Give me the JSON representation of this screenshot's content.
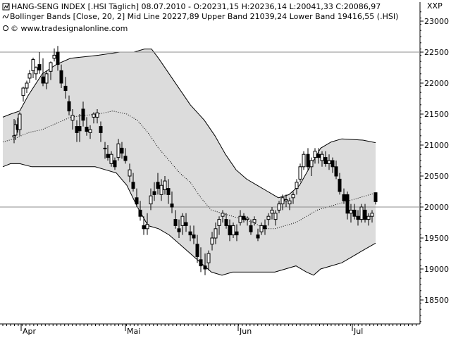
{
  "header": {
    "line1": "HANG-SENG INDEX [.HSI  Täglich] 08.07.2010 - O:20231,15 H:20236,14 L:20041,33 C:20086,97",
    "line2": "Bollinger Bands [Close, 20, 2] Mid Line 20227,89 Upper Band 21039,24 Lower Band 19416,55 (.HSI)",
    "line3": "© www.tradesignalonline.com"
  },
  "icons": {
    "bollinger": "wave-icon",
    "copyright": "copyright-icon",
    "corner": "XXP"
  },
  "colors": {
    "band_fill": "#dcdcdc",
    "band_line": "#000000",
    "candle_up": "#ffffff",
    "candle_down": "#000000",
    "grid": "#c8c8c8",
    "ref_line": "#8c8c8c"
  },
  "chart_data": {
    "type": "candlestick",
    "title": "HANG-SENG INDEX",
    "y_axis": {
      "range": [
        18000,
        23200
      ],
      "ticks": [
        18500,
        19000,
        19500,
        20000,
        20500,
        21000,
        21500,
        22000,
        22500,
        23000
      ],
      "tick_labels": [
        "18500",
        "19000",
        "19500",
        "20000",
        "20500",
        "21000",
        "21500",
        "22000",
        "22500",
        "23000"
      ],
      "position": "right"
    },
    "x_axis": {
      "labels": [
        "Apr",
        "Mai",
        "Jun",
        "Jul"
      ],
      "label_index": [
        2,
        37,
        72,
        103
      ],
      "n_bars": 108
    },
    "reference_lines": [
      22500,
      20000
    ],
    "candles": [
      [
        20,
        21130,
        21420,
        21030,
        21150
      ],
      [
        22,
        21160,
        21400,
        21080,
        21330
      ],
      [
        25,
        21330,
        21440,
        21200,
        21250
      ],
      [
        28,
        21250,
        21530,
        21150,
        21500
      ],
      [
        33,
        21800,
        21940,
        21700,
        21920
      ],
      [
        38,
        21920,
        22040,
        21840,
        22000
      ],
      [
        42,
        22080,
        22210,
        22000,
        22150
      ],
      [
        47,
        22200,
        22410,
        22080,
        22380
      ],
      [
        51,
        22150,
        22270,
        22050,
        22250
      ],
      [
        56,
        22300,
        22500,
        22150,
        22210
      ],
      [
        61,
        22100,
        22400,
        21950,
        22000
      ],
      [
        66,
        22000,
        22200,
        21900,
        22150
      ],
      [
        72,
        22190,
        22350,
        22050,
        22330
      ],
      [
        77,
        22400,
        22560,
        22350,
        22450
      ],
      [
        82,
        22500,
        22600,
        22200,
        22300
      ],
      [
        87,
        22200,
        22300,
        21920,
        22000
      ],
      [
        93,
        21950,
        22100,
        21750,
        21880
      ],
      [
        98,
        21700,
        21800,
        21480,
        21550
      ],
      [
        103,
        21400,
        21580,
        21250,
        21480
      ],
      [
        109,
        21300,
        21400,
        21050,
        21200
      ],
      [
        113,
        21300,
        21500,
        21050,
        21230
      ],
      [
        118,
        21580,
        21700,
        21300,
        21400
      ],
      [
        123,
        21290,
        21450,
        21150,
        21220
      ],
      [
        128,
        21200,
        21320,
        21100,
        21250
      ],
      [
        133,
        21450,
        21530,
        21350,
        21500
      ],
      [
        138,
        21450,
        21580,
        21350,
        21520
      ],
      [
        143,
        21300,
        21380,
        21050,
        21200
      ],
      [
        149,
        20950,
        21050,
        20780,
        20950
      ],
      [
        153,
        20850,
        21000,
        20750,
        20800
      ],
      [
        158,
        20700,
        20900,
        20650,
        20850
      ],
      [
        163,
        20750,
        20800,
        20600,
        20650
      ],
      [
        168,
        20800,
        21100,
        20750,
        21020
      ],
      [
        173,
        20950,
        21050,
        20780,
        20870
      ],
      [
        178,
        20820,
        20950,
        20700,
        20750
      ],
      [
        184,
        20500,
        20700,
        20400,
        20600
      ],
      [
        189,
        20400,
        20550,
        20250,
        20300
      ],
      [
        194,
        20150,
        20300,
        20000,
        20050
      ],
      [
        199,
        19950,
        20100,
        19780,
        19850
      ],
      [
        204,
        19700,
        19850,
        19550,
        19650
      ],
      [
        209,
        19650,
        19900,
        19550,
        19720
      ],
      [
        214,
        20050,
        20300,
        19950,
        20180
      ],
      [
        219,
        20250,
        20400,
        20100,
        20200
      ],
      [
        224,
        20400,
        20550,
        20200,
        20300
      ],
      [
        229,
        20200,
        20450,
        20100,
        20350
      ],
      [
        234,
        20280,
        20500,
        20200,
        20420
      ],
      [
        239,
        20300,
        20450,
        20050,
        20200
      ],
      [
        244,
        20050,
        20250,
        19900,
        20000
      ],
      [
        249,
        19800,
        19950,
        19650,
        19700
      ],
      [
        254,
        19650,
        19800,
        19500,
        19600
      ],
      [
        259,
        19700,
        19900,
        19550,
        19850
      ],
      [
        264,
        19750,
        19900,
        19600,
        19700
      ],
      [
        270,
        19600,
        19700,
        19450,
        19550
      ],
      [
        275,
        19550,
        19700,
        19400,
        19500
      ],
      [
        280,
        19400,
        19550,
        19100,
        19200
      ],
      [
        285,
        19150,
        19350,
        18950,
        19050
      ],
      [
        291,
        19050,
        19250,
        18900,
        19000
      ],
      [
        296,
        19100,
        19300,
        18980,
        19250
      ],
      [
        301,
        19400,
        19600,
        19300,
        19500
      ],
      [
        306,
        19500,
        19750,
        19400,
        19650
      ],
      [
        311,
        19700,
        19850,
        19550,
        19800
      ],
      [
        316,
        19850,
        19950,
        19750,
        19900
      ],
      [
        321,
        19800,
        19900,
        19650,
        19700
      ],
      [
        326,
        19700,
        19800,
        19450,
        19550
      ],
      [
        331,
        19550,
        19750,
        19500,
        19700
      ],
      [
        336,
        19600,
        19720,
        19450,
        19550
      ],
      [
        341,
        19750,
        19950,
        19700,
        19850
      ],
      [
        346,
        19850,
        19900,
        19750,
        19800
      ],
      [
        351,
        19800,
        19850,
        19700,
        19820
      ],
      [
        356,
        19700,
        19800,
        19550,
        19600
      ],
      [
        361,
        19750,
        19850,
        19700,
        19800
      ],
      [
        366,
        19550,
        19650,
        19450,
        19500
      ],
      [
        371,
        19600,
        19750,
        19550,
        19700
      ],
      [
        376,
        19700,
        19800,
        19550,
        19650
      ],
      [
        381,
        19800,
        19900,
        19700,
        19850
      ],
      [
        386,
        19900,
        20000,
        19800,
        19950
      ],
      [
        391,
        19800,
        19950,
        19700,
        19900
      ],
      [
        396,
        19950,
        20100,
        19900,
        20050
      ],
      [
        401,
        20050,
        20200,
        19950,
        20150
      ],
      [
        406,
        20100,
        20200,
        20000,
        20120
      ],
      [
        411,
        20050,
        20150,
        19950,
        20100
      ],
      [
        416,
        20150,
        20250,
        20050,
        20200
      ],
      [
        421,
        20300,
        20450,
        20200,
        20400
      ],
      [
        426,
        20450,
        20700,
        20400,
        20650
      ],
      [
        431,
        20650,
        20900,
        20600,
        20850
      ],
      [
        437,
        20850,
        20950,
        20600,
        20650
      ],
      [
        442,
        20650,
        20800,
        20500,
        20750
      ],
      [
        447,
        20800,
        20950,
        20700,
        20900
      ],
      [
        452,
        20850,
        20950,
        20700,
        20800
      ],
      [
        457,
        20750,
        20900,
        20650,
        20850
      ],
      [
        462,
        20800,
        20900,
        20650,
        20700
      ],
      [
        467,
        20700,
        20850,
        20600,
        20750
      ],
      [
        472,
        20750,
        20800,
        20550,
        20650
      ],
      [
        477,
        20650,
        20750,
        20450,
        20500
      ],
      [
        482,
        20450,
        20550,
        20200,
        20250
      ],
      [
        488,
        20200,
        20300,
        20050,
        20100
      ],
      [
        493,
        20200,
        20250,
        19800,
        19900
      ],
      [
        498,
        19900,
        20050,
        19750,
        19950
      ],
      [
        503,
        19950,
        20050,
        19800,
        19850
      ],
      [
        508,
        19850,
        19950,
        19700,
        19800
      ],
      [
        513,
        19800,
        20050,
        19750,
        20000
      ],
      [
        518,
        19950,
        20050,
        19750,
        19800
      ],
      [
        523,
        19800,
        19900,
        19700,
        19850
      ],
      [
        528,
        19850,
        19950,
        19750,
        19900
      ],
      [
        533,
        20231.15,
        20236.14,
        20041.33,
        20086.97
      ]
    ],
    "upper_band": [
      [
        4,
        21450
      ],
      [
        15,
        21500
      ],
      [
        28,
        21550
      ],
      [
        40,
        21800
      ],
      [
        60,
        22150
      ],
      [
        80,
        22300
      ],
      [
        100,
        22400
      ],
      [
        140,
        22450
      ],
      [
        170,
        22500
      ],
      [
        190,
        22500
      ],
      [
        205,
        22550
      ],
      [
        215,
        22550
      ],
      [
        225,
        22400
      ],
      [
        240,
        22150
      ],
      [
        255,
        21900
      ],
      [
        270,
        21650
      ],
      [
        290,
        21400
      ],
      [
        305,
        21150
      ],
      [
        320,
        20850
      ],
      [
        335,
        20600
      ],
      [
        350,
        20450
      ],
      [
        365,
        20350
      ],
      [
        380,
        20250
      ],
      [
        395,
        20150
      ],
      [
        410,
        20200
      ],
      [
        425,
        20350
      ],
      [
        440,
        20650
      ],
      [
        455,
        20950
      ],
      [
        470,
        21050
      ],
      [
        485,
        21100
      ],
      [
        500,
        21090
      ],
      [
        515,
        21080
      ],
      [
        533,
        21039
      ]
    ],
    "lower_band": [
      [
        4,
        20650
      ],
      [
        15,
        20700
      ],
      [
        28,
        20700
      ],
      [
        45,
        20650
      ],
      [
        65,
        20650
      ],
      [
        90,
        20650
      ],
      [
        115,
        20650
      ],
      [
        135,
        20650
      ],
      [
        150,
        20600
      ],
      [
        165,
        20550
      ],
      [
        180,
        20350
      ],
      [
        195,
        20000
      ],
      [
        210,
        19700
      ],
      [
        225,
        19650
      ],
      [
        240,
        19550
      ],
      [
        255,
        19400
      ],
      [
        270,
        19250
      ],
      [
        285,
        19100
      ],
      [
        300,
        18950
      ],
      [
        315,
        18900
      ],
      [
        330,
        18950
      ],
      [
        345,
        18950
      ],
      [
        360,
        18950
      ],
      [
        375,
        18950
      ],
      [
        390,
        18950
      ],
      [
        405,
        19000
      ],
      [
        420,
        19050
      ],
      [
        435,
        18950
      ],
      [
        445,
        18900
      ],
      [
        455,
        19000
      ],
      [
        470,
        19050
      ],
      [
        485,
        19100
      ],
      [
        500,
        19200
      ],
      [
        515,
        19300
      ],
      [
        533,
        19417
      ]
    ],
    "mid_line": [
      [
        4,
        21050
      ],
      [
        20,
        21100
      ],
      [
        40,
        21200
      ],
      [
        60,
        21250
      ],
      [
        80,
        21350
      ],
      [
        100,
        21450
      ],
      [
        120,
        21480
      ],
      [
        140,
        21500
      ],
      [
        160,
        21550
      ],
      [
        180,
        21500
      ],
      [
        195,
        21400
      ],
      [
        210,
        21200
      ],
      [
        225,
        20950
      ],
      [
        240,
        20750
      ],
      [
        255,
        20550
      ],
      [
        270,
        20400
      ],
      [
        285,
        20150
      ],
      [
        300,
        19950
      ],
      [
        315,
        19900
      ],
      [
        330,
        19850
      ],
      [
        345,
        19800
      ],
      [
        360,
        19750
      ],
      [
        375,
        19650
      ],
      [
        390,
        19650
      ],
      [
        405,
        19700
      ],
      [
        420,
        19750
      ],
      [
        435,
        19850
      ],
      [
        450,
        19950
      ],
      [
        465,
        20000
      ],
      [
        480,
        20050
      ],
      [
        495,
        20100
      ],
      [
        510,
        20150
      ],
      [
        533,
        20228
      ]
    ]
  }
}
